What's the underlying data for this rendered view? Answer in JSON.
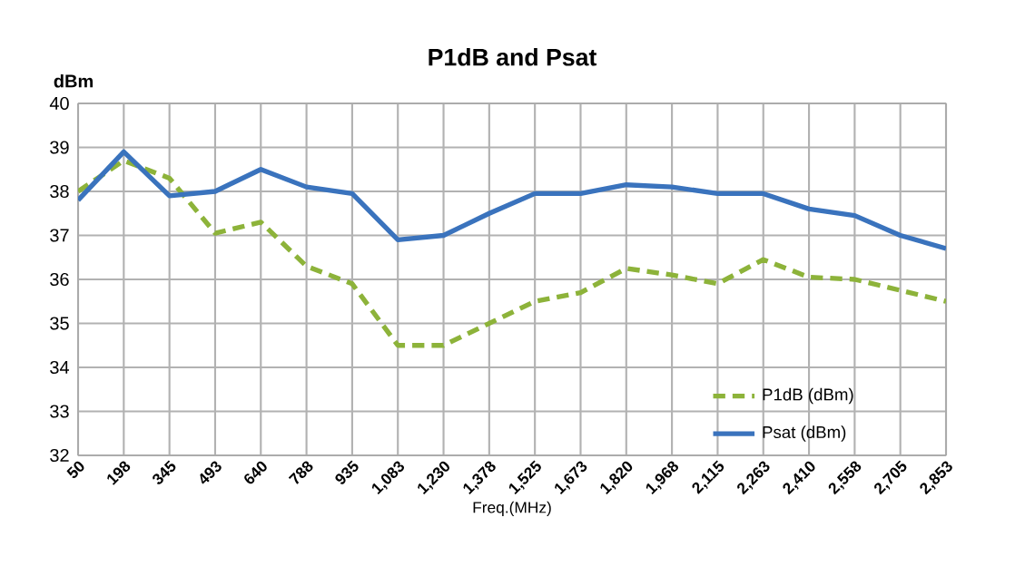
{
  "chart_data": {
    "type": "line",
    "title": "P1dB and Psat",
    "xlabel": "Freq.(MHz)",
    "ylabel": "dBm",
    "categories": [
      "50",
      "198",
      "345",
      "493",
      "640",
      "788",
      "935",
      "1,083",
      "1,230",
      "1,378",
      "1,525",
      "1,673",
      "1,820",
      "1,968",
      "2,115",
      "2,263",
      "2,410",
      "2,558",
      "2,705",
      "2,853"
    ],
    "series": [
      {
        "name": "P1dB (dBm)",
        "color": "#8db33a",
        "line_style": "dashed",
        "values": [
          38.0,
          38.7,
          38.3,
          37.05,
          37.3,
          36.3,
          35.9,
          34.5,
          34.5,
          35.0,
          35.5,
          35.7,
          36.25,
          36.1,
          35.9,
          36.45,
          36.05,
          36.0,
          35.75,
          35.5
        ]
      },
      {
        "name": "Psat (dBm)",
        "color": "#3a73bd",
        "line_style": "solid",
        "values": [
          37.8,
          38.9,
          37.9,
          38.0,
          38.5,
          38.1,
          37.95,
          36.9,
          37.0,
          37.5,
          37.95,
          37.95,
          38.15,
          38.1,
          37.95,
          37.95,
          37.6,
          37.45,
          37.0,
          36.7
        ]
      }
    ],
    "ylim": [
      32,
      40
    ],
    "yticks": [
      32,
      33,
      34,
      35,
      36,
      37,
      38,
      39,
      40
    ],
    "grid": true,
    "legend": "bottom right",
    "marker": "none"
  }
}
